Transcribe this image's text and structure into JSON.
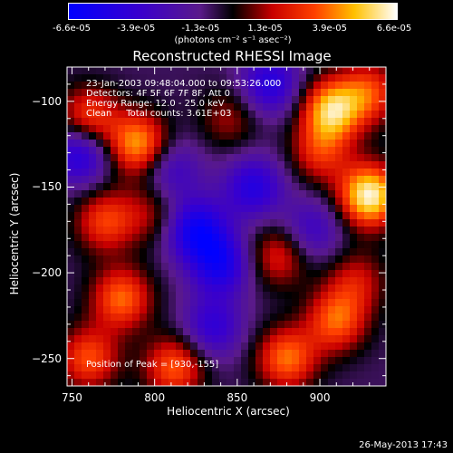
{
  "colorbar": {
    "ticks": [
      "-6.6e-05",
      "-3.9e-05",
      "-1.3e-05",
      "1.3e-05",
      "3.9e-05",
      "6.6e-05"
    ],
    "units": "(photons cm⁻² s⁻¹ asec⁻²)"
  },
  "chart_data": {
    "type": "heatmap",
    "title": "Reconstructed RHESSI Image",
    "xlabel": "Heliocentric X (arcsec)",
    "ylabel": "Heliocentric Y (arcsec)",
    "xlim": [
      747,
      940
    ],
    "ylim": [
      -266,
      -80
    ],
    "xticks": [
      750,
      800,
      850,
      900
    ],
    "yticks": [
      -100,
      -150,
      -200,
      -250
    ],
    "xtick_labels": [
      "750",
      "800",
      "850",
      "900"
    ],
    "ytick_labels": [
      "−100",
      "−150",
      "−200",
      "−250"
    ],
    "colormap": "blue-black-red-yellow-white",
    "value_range": [
      -6.6e-05,
      6.6e-05
    ],
    "sources": [
      {
        "x": 930,
        "y": -155,
        "value": 6.6e-05
      },
      {
        "x": 907,
        "y": -105,
        "value": 5.5e-05
      },
      {
        "x": 790,
        "y": -125,
        "value": 5e-05
      },
      {
        "x": 760,
        "y": -110,
        "value": 3.9e-05
      },
      {
        "x": 770,
        "y": -170,
        "value": 3.5e-05
      },
      {
        "x": 780,
        "y": -215,
        "value": 4.2e-05
      },
      {
        "x": 760,
        "y": -250,
        "value": 3.8e-05
      },
      {
        "x": 812,
        "y": -255,
        "value": 4e-05
      },
      {
        "x": 880,
        "y": -250,
        "value": 4.3e-05
      },
      {
        "x": 910,
        "y": -228,
        "value": 4e-05
      },
      {
        "x": 922,
        "y": -205,
        "value": 2.5e-05
      },
      {
        "x": 875,
        "y": -190,
        "value": 3e-05
      },
      {
        "x": 900,
        "y": -130,
        "value": 3e-05
      },
      {
        "x": 845,
        "y": -110,
        "value": 2e-05
      },
      {
        "x": 798,
        "y": -165,
        "value": 2e-05
      },
      {
        "x": 930,
        "y": -95,
        "value": 3.5e-05
      },
      {
        "x": 825,
        "y": -175,
        "value": -4.5e-05
      },
      {
        "x": 840,
        "y": -195,
        "value": -4e-05
      },
      {
        "x": 860,
        "y": -150,
        "value": -3.5e-05
      },
      {
        "x": 870,
        "y": -90,
        "value": -3.5e-05
      },
      {
        "x": 835,
        "y": -232,
        "value": -3e-05
      },
      {
        "x": 755,
        "y": -130,
        "value": -4e-05
      },
      {
        "x": 895,
        "y": -175,
        "value": -2.5e-05
      },
      {
        "x": 810,
        "y": -140,
        "value": -2.5e-05
      }
    ]
  },
  "info": {
    "line1": "23-Jan-2003 09:48:04.000 to 09:53:26.000",
    "line2": "Detectors: 4F 5F 6F 7F 8F, Att 0",
    "line3": "Energy Range: 12.0 - 25.0 keV",
    "line4": "Clean     Total counts: 3.61E+03"
  },
  "peak": "Position of Peak = [930,-155]",
  "timestamp": "26-May-2013 17:43"
}
